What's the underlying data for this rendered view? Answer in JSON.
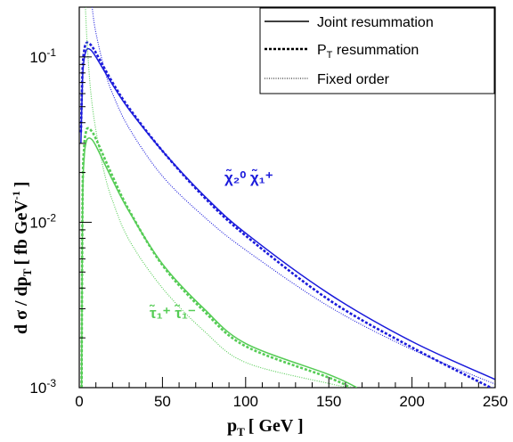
{
  "chart_data": {
    "type": "line",
    "xlabel_main": "p",
    "xlabel_sub": "T",
    "xlabel_unit": "[ GeV ]",
    "ylabel_text": "d σ / dp",
    "ylabel_sub": "T",
    "ylabel_unit_pre": "[ fb GeV",
    "ylabel_unit_sup": "-1",
    "ylabel_unit_post": "]",
    "xlim": [
      0,
      250
    ],
    "ylim": [
      0.001,
      0.2
    ],
    "yscale": "log",
    "x_ticks": [
      "0",
      "50",
      "100",
      "150",
      "200",
      "250"
    ],
    "y_ticks": [
      {
        "base": "10",
        "exp": "-3",
        "value": 0.001
      },
      {
        "base": "10",
        "exp": "-2",
        "value": 0.01
      },
      {
        "base": "10",
        "exp": "-1",
        "value": 0.1
      }
    ],
    "legend": {
      "position": "top-right",
      "entries": [
        {
          "label": "Joint resummation",
          "style": "solid"
        },
        {
          "label_main": "P",
          "label_sub": "T",
          "label_rest": " resummation",
          "style": "dashed"
        },
        {
          "label": "Fixed order",
          "style": "dotted"
        }
      ]
    },
    "process_labels": [
      {
        "id": "chargino",
        "text": "χ̃₂⁰ χ̃₁⁺",
        "color": "#1a1adb"
      },
      {
        "id": "stau",
        "text": "τ̃₁⁺ τ̃₁⁻",
        "color": "#55cc55"
      }
    ],
    "colors": {
      "blue": "#1a1adb",
      "green": "#55cc55"
    },
    "series": [
      {
        "process": "chargino",
        "style": "solid",
        "color": "#1a1adb",
        "x": [
          1,
          2,
          3,
          4,
          5,
          7,
          10,
          20,
          30,
          50,
          75,
          100,
          150,
          200,
          250
        ],
        "y": [
          0.03,
          0.075,
          0.098,
          0.108,
          0.112,
          0.11,
          0.1,
          0.068,
          0.048,
          0.027,
          0.0145,
          0.0086,
          0.0037,
          0.0019,
          0.00112
        ]
      },
      {
        "process": "chargino",
        "style": "dashed",
        "color": "#1a1adb",
        "x": [
          1,
          2,
          3,
          4,
          5,
          7,
          10,
          20,
          30,
          50,
          75,
          100,
          150,
          200,
          250
        ],
        "y": [
          0.035,
          0.085,
          0.11,
          0.12,
          0.122,
          0.118,
          0.106,
          0.07,
          0.049,
          0.027,
          0.0142,
          0.0083,
          0.0034,
          0.00175,
          0.00097
        ]
      },
      {
        "process": "chargino",
        "style": "dotted",
        "color": "#1a1adb",
        "x": [
          6,
          8,
          10,
          15,
          20,
          30,
          50,
          75,
          100,
          150,
          200,
          250
        ],
        "y": [
          0.3,
          0.19,
          0.14,
          0.085,
          0.06,
          0.037,
          0.019,
          0.0108,
          0.0068,
          0.0031,
          0.0017,
          0.00105
        ]
      },
      {
        "process": "stau",
        "style": "solid",
        "color": "#55cc55",
        "x": [
          1.4,
          2,
          3,
          4,
          5,
          7,
          10,
          20,
          30,
          50,
          75,
          100,
          150,
          167
        ],
        "y": [
          0.001,
          0.013,
          0.025,
          0.03,
          0.032,
          0.032,
          0.029,
          0.018,
          0.0116,
          0.0056,
          0.003,
          0.00185,
          0.0012,
          0.001
        ]
      },
      {
        "process": "stau",
        "style": "dashed",
        "color": "#55cc55",
        "x": [
          1.4,
          2,
          3,
          4,
          5,
          7,
          10,
          20,
          30,
          50,
          75,
          100,
          150,
          163
        ],
        "y": [
          0.001,
          0.015,
          0.029,
          0.035,
          0.037,
          0.036,
          0.032,
          0.019,
          0.0118,
          0.0055,
          0.0029,
          0.00178,
          0.00115,
          0.001
        ]
      },
      {
        "process": "stau",
        "style": "dotted",
        "color": "#55cc55",
        "x": [
          3,
          4,
          5,
          7,
          10,
          15,
          20,
          30,
          50,
          75,
          100,
          150,
          164
        ],
        "y": [
          0.3,
          0.17,
          0.11,
          0.06,
          0.036,
          0.02,
          0.0135,
          0.0078,
          0.004,
          0.0022,
          0.00142,
          0.00106,
          0.001
        ]
      }
    ]
  }
}
